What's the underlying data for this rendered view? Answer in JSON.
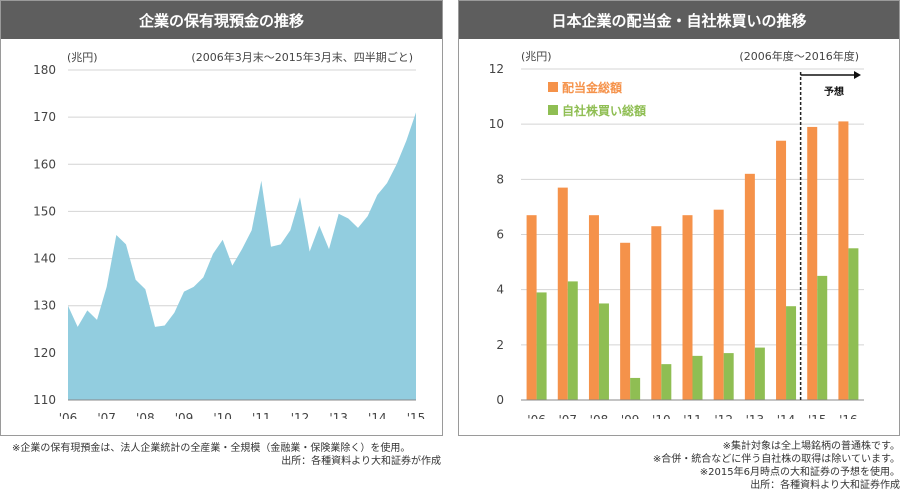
{
  "left": {
    "title": "企業の保有現預金の推移",
    "footnote": "※企業の保有現預金は、法人企業統計の全産業・全規模（金融業・保険業除く）を使用。",
    "source": "出所：各種資料より大和証券が作成"
  },
  "right": {
    "title": "日本企業の配当金・自社株買いの推移",
    "forecast_label": "予想",
    "notes": [
      "※集計対象は全上場銘柄の普通株です。",
      "※合併・統合などに伴う自社株の取得は除いています。",
      "※2015年6月時点の大和証券の予想を使用。",
      "出所：各種資料より大和証券作成"
    ]
  },
  "colors": {
    "area": "#92cddf",
    "dividend": "#f5924a",
    "buyback": "#8fbe53",
    "header": "#5e5e5e",
    "grid": "#d4d4d4"
  },
  "chart_data": [
    {
      "type": "area",
      "ylabel": "(兆円)",
      "subtitle": "(2006年3月末〜2015年3月末、四半期ごと)",
      "ylim": [
        110,
        180
      ],
      "yticks": [
        110,
        120,
        130,
        140,
        150,
        160,
        170,
        180
      ],
      "xtick_labels": [
        "'06",
        "'07",
        "'08",
        "'09",
        "'10",
        "'11",
        "'12",
        "'13",
        "'14",
        "'15"
      ],
      "x_start": 2006.0,
      "x_step": 0.25,
      "values": [
        130,
        125.5,
        129,
        127,
        134,
        145,
        143,
        135.5,
        133.5,
        125.5,
        125.8,
        128.5,
        133,
        134,
        136,
        141,
        144,
        138.5,
        142,
        146,
        156.5,
        142.5,
        143,
        146,
        153,
        141.5,
        147,
        142,
        149.5,
        148.5,
        146.5,
        149,
        153.5,
        156,
        160,
        165,
        171
      ],
      "grid": true
    },
    {
      "type": "bar",
      "ylabel": "(兆円)",
      "subtitle": "(2006年度〜2016年度)",
      "ylim": [
        0,
        12
      ],
      "yticks": [
        0,
        2,
        4,
        6,
        8,
        10,
        12
      ],
      "categories": [
        "'06",
        "'07",
        "'08",
        "'09",
        "'10",
        "'11",
        "'12",
        "'13",
        "'14",
        "'15",
        "'16"
      ],
      "series": [
        {
          "name": "配当金総額",
          "values": [
            6.7,
            7.7,
            6.7,
            5.7,
            6.3,
            6.7,
            6.9,
            8.2,
            9.4,
            9.9,
            10.1
          ]
        },
        {
          "name": "自社株買い総額",
          "values": [
            3.9,
            4.3,
            3.5,
            0.8,
            1.3,
            1.6,
            1.7,
            1.9,
            3.4,
            4.5,
            5.5
          ]
        }
      ],
      "forecast_from": "'15",
      "legend": "top-left",
      "grid": true
    }
  ]
}
